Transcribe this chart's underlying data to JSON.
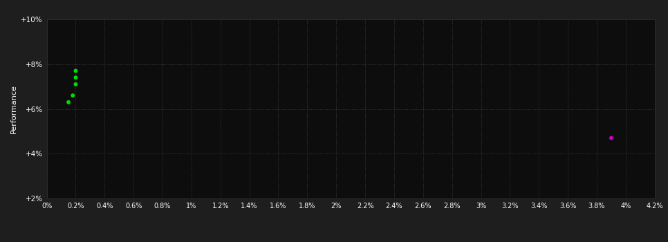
{
  "background_color": "#1e1e1e",
  "plot_bg_color": "#0d0d0d",
  "grid_color": "#3a3a3a",
  "ylabel": "Performance",
  "xlabel_color": "#ffffff",
  "ylabel_color": "#ffffff",
  "tick_color": "#ffffff",
  "xlim": [
    0.0,
    0.042
  ],
  "ylim": [
    0.02,
    0.1
  ],
  "xticks": [
    0.0,
    0.002,
    0.004,
    0.006,
    0.008,
    0.01,
    0.012,
    0.014,
    0.016,
    0.018,
    0.02,
    0.022,
    0.024,
    0.026,
    0.028,
    0.03,
    0.032,
    0.034,
    0.036,
    0.038,
    0.04,
    0.042
  ],
  "xtick_labels": [
    "0%",
    "0.2%",
    "0.4%",
    "0.6%",
    "0.8%",
    "1%",
    "1.2%",
    "1.4%",
    "1.6%",
    "1.8%",
    "2%",
    "2.2%",
    "2.4%",
    "2.6%",
    "2.8%",
    "3%",
    "3.2%",
    "3.4%",
    "3.6%",
    "3.8%",
    "4%",
    "4.2%"
  ],
  "yticks": [
    0.02,
    0.04,
    0.06,
    0.08,
    0.1
  ],
  "ytick_labels": [
    "+2%",
    "+4%",
    "+6%",
    "+8%",
    "+10%"
  ],
  "green_points": [
    [
      0.002,
      0.077
    ],
    [
      0.002,
      0.074
    ],
    [
      0.002,
      0.071
    ],
    [
      0.0018,
      0.066
    ],
    [
      0.0015,
      0.063
    ]
  ],
  "magenta_points": [
    [
      0.039,
      0.047
    ]
  ],
  "green_color": "#00dd00",
  "magenta_color": "#cc00cc",
  "point_size": 18,
  "figsize": [
    9.66,
    3.5
  ],
  "dpi": 100
}
